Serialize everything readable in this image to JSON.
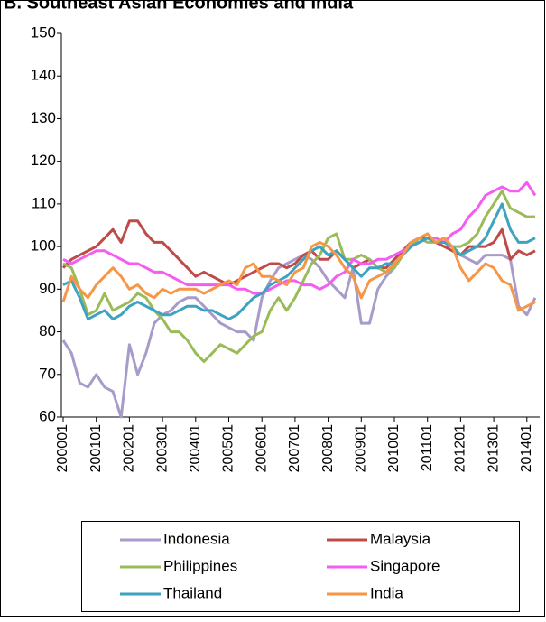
{
  "chart_data": {
    "type": "line",
    "title": "B. Southeast Asian Economies and India",
    "categories": [
      "200001",
      null,
      null,
      null,
      "200101",
      null,
      null,
      null,
      "200201",
      null,
      null,
      null,
      "200301",
      null,
      null,
      null,
      "200401",
      null,
      null,
      null,
      "200501",
      null,
      null,
      null,
      "200601",
      null,
      null,
      null,
      "200701",
      null,
      null,
      null,
      "200801",
      null,
      null,
      null,
      "200901",
      null,
      null,
      null,
      "201001",
      null,
      null,
      null,
      "201101",
      null,
      null,
      null,
      "201201",
      null,
      null,
      null,
      "201301",
      null,
      null,
      null,
      "201401",
      null
    ],
    "series": [
      {
        "name": "Indonesia",
        "color": "#a99bc9",
        "values": [
          78,
          75,
          68,
          67,
          70,
          67,
          66,
          60,
          77,
          70,
          75,
          82,
          84,
          85,
          87,
          88,
          88,
          86,
          84,
          82,
          81,
          80,
          80,
          78,
          88,
          92,
          95,
          96,
          97,
          98,
          97,
          95,
          92,
          90,
          88,
          95,
          82,
          82,
          90,
          93,
          95,
          98,
          100,
          101,
          102,
          101,
          100,
          100,
          98,
          97,
          96,
          98,
          98,
          98,
          97,
          86,
          84,
          88
        ]
      },
      {
        "name": "Malaysia",
        "color": "#be4b48",
        "values": [
          95,
          97,
          98,
          99,
          100,
          102,
          104,
          101,
          106,
          106,
          103,
          101,
          101,
          99,
          97,
          95,
          93,
          94,
          93,
          92,
          91,
          92,
          93,
          94,
          95,
          96,
          96,
          95,
          96,
          98,
          99,
          97,
          97,
          99,
          97,
          95,
          96,
          97,
          95,
          95,
          97,
          99,
          101,
          102,
          102,
          101,
          100,
          99,
          98,
          100,
          100,
          100,
          101,
          104,
          97,
          99,
          98,
          99
        ]
      },
      {
        "name": "Philippines",
        "color": "#9bbb59",
        "values": [
          96,
          95,
          90,
          84,
          85,
          89,
          85,
          86,
          87,
          89,
          88,
          85,
          83,
          80,
          80,
          78,
          75,
          73,
          75,
          77,
          76,
          75,
          77,
          79,
          80,
          85,
          88,
          85,
          88,
          92,
          96,
          98,
          102,
          103,
          97,
          97,
          98,
          97,
          95,
          94,
          95,
          98,
          100,
          102,
          101,
          101,
          101,
          100,
          100,
          101,
          103,
          107,
          110,
          113,
          109,
          108,
          107,
          107
        ]
      },
      {
        "name": "Singapore",
        "color": "#f55cf0",
        "values": [
          97,
          96,
          97,
          98,
          99,
          99,
          98,
          97,
          96,
          96,
          95,
          94,
          94,
          93,
          92,
          91,
          91,
          91,
          91,
          91,
          91,
          90,
          90,
          89,
          89,
          90,
          91,
          92,
          92,
          91,
          91,
          90,
          91,
          93,
          94,
          97,
          96,
          96,
          97,
          97,
          98,
          99,
          100,
          101,
          102,
          102,
          101,
          103,
          104,
          107,
          109,
          112,
          113,
          114,
          113,
          113,
          115,
          112
        ]
      },
      {
        "name": "Thailand",
        "color": "#3ea3c0",
        "values": [
          91,
          92,
          88,
          83,
          84,
          85,
          83,
          84,
          86,
          87,
          86,
          85,
          84,
          84,
          85,
          86,
          86,
          85,
          85,
          84,
          83,
          84,
          86,
          88,
          89,
          91,
          92,
          93,
          95,
          97,
          99,
          100,
          98,
          99,
          97,
          95,
          93,
          95,
          95,
          96,
          96,
          98,
          100,
          101,
          102,
          101,
          101,
          100,
          98,
          99,
          100,
          102,
          106,
          110,
          104,
          101,
          101,
          102
        ]
      },
      {
        "name": "India",
        "color": "#f79646",
        "values": [
          87,
          93,
          90,
          88,
          91,
          93,
          95,
          93,
          90,
          91,
          89,
          88,
          90,
          89,
          90,
          90,
          90,
          89,
          90,
          91,
          92,
          91,
          95,
          96,
          93,
          93,
          92,
          91,
          94,
          95,
          100,
          101,
          100,
          98,
          95,
          93,
          88,
          92,
          93,
          94,
          96,
          98,
          101,
          102,
          103,
          101,
          102,
          100,
          95,
          92,
          94,
          96,
          95,
          92,
          91,
          85,
          86,
          87
        ]
      }
    ],
    "ylim": [
      60,
      150
    ],
    "yticks": [
      60,
      70,
      80,
      90,
      100,
      110,
      120,
      130,
      140,
      150
    ]
  }
}
